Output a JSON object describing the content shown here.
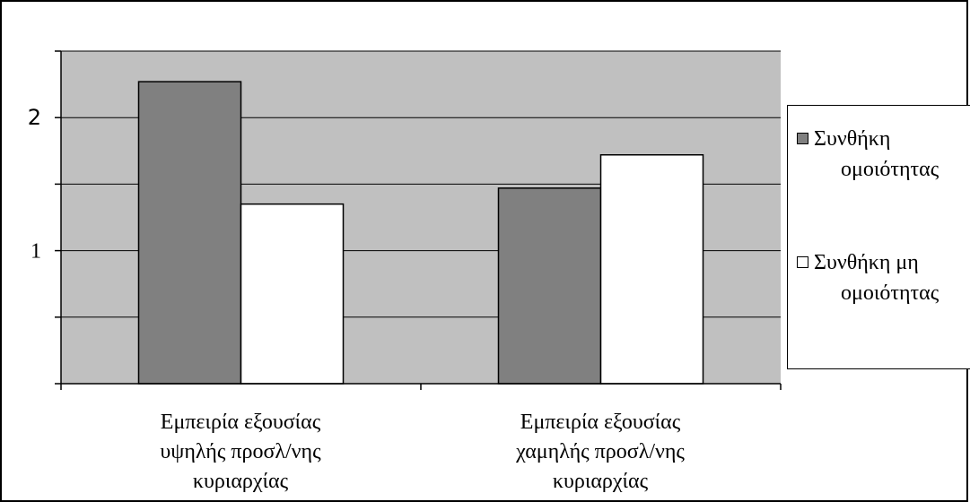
{
  "chart_data": {
    "type": "bar",
    "title": "",
    "xlabel": "",
    "ylabel": "",
    "categories": [
      [
        "Εμπειρία εξουσίας",
        "υψηλής προσλ/νης",
        "κυριαρχίας"
      ],
      [
        "Εμπειρία εξουσίας",
        "χαμηλής προσλ/νης",
        "κυριαρχίας"
      ]
    ],
    "series": [
      {
        "name_lines": [
          "Συνθήκη",
          "ομοιότητας"
        ],
        "color": "#808080",
        "values": [
          2.27,
          1.47
        ]
      },
      {
        "name_lines": [
          "Συνθήκη μη",
          "ομοιότητας"
        ],
        "color": "#ffffff",
        "values": [
          1.35,
          1.72
        ]
      }
    ],
    "ylim": [
      0,
      2.5
    ],
    "y_tick_step": 0.5,
    "y_tick_labels": [
      {
        "value": 1,
        "label": "1"
      },
      {
        "value": 2,
        "label": "2"
      }
    ],
    "plot_background": "#c0c0c0",
    "grid": true,
    "legend_position": "right"
  }
}
